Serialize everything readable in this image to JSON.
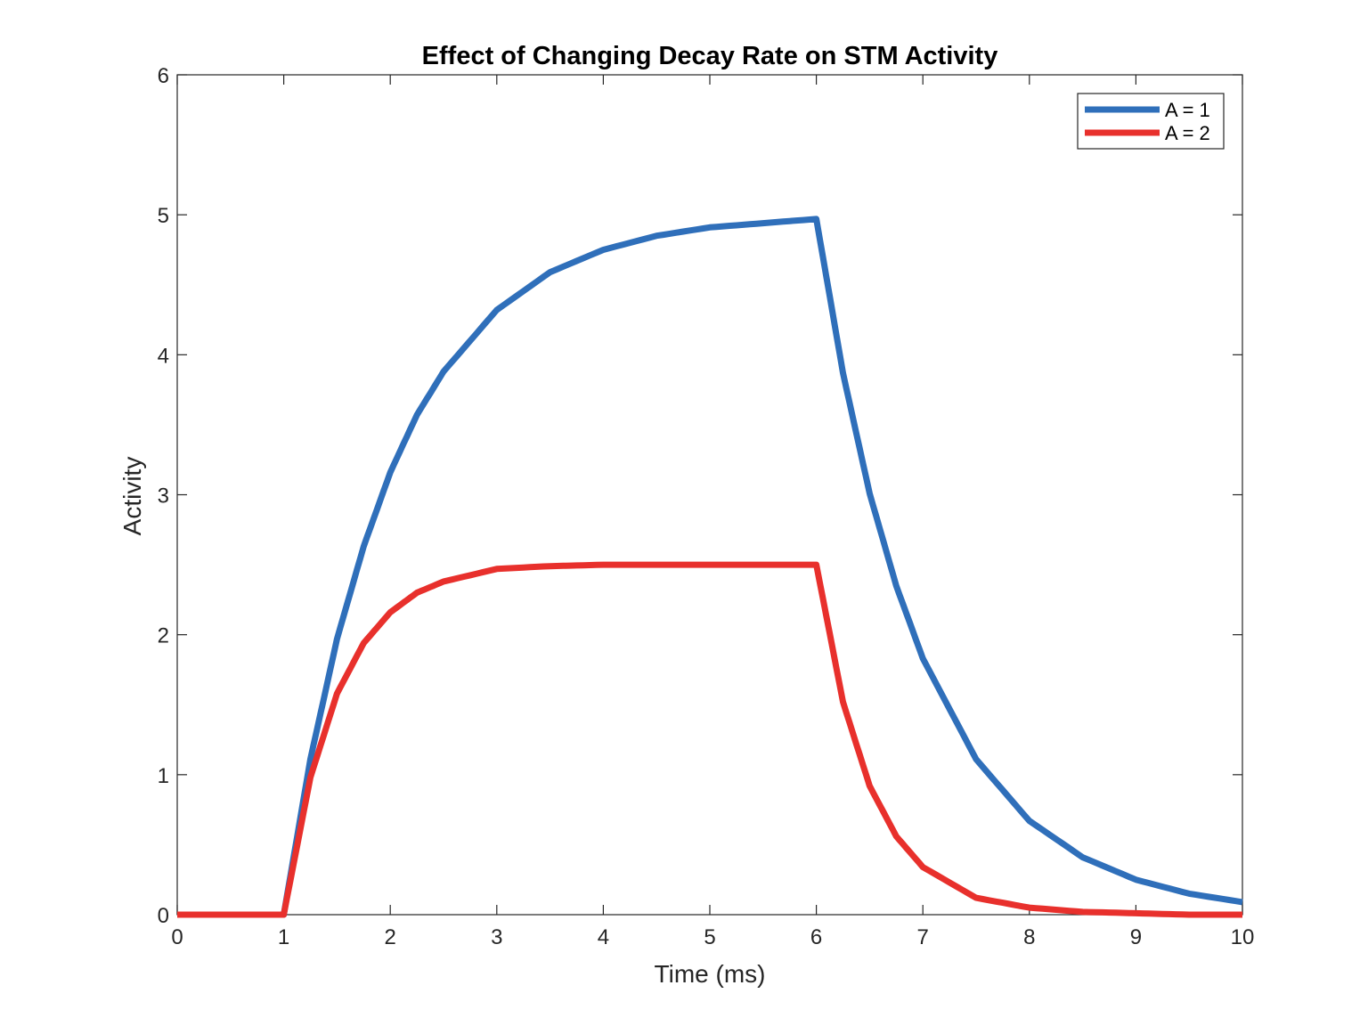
{
  "chart_data": {
    "type": "line",
    "title": "Effect of Changing Decay Rate on STM Activity",
    "xlabel": "Time (ms)",
    "ylabel": "Activity",
    "xlim": [
      0,
      10
    ],
    "ylim": [
      0,
      6
    ],
    "xticks": [
      0,
      1,
      2,
      3,
      4,
      5,
      6,
      7,
      8,
      9,
      10
    ],
    "yticks": [
      0,
      1,
      2,
      3,
      4,
      5,
      6
    ],
    "grid": false,
    "legend_position": "top-right",
    "x": [
      0,
      0.5,
      1,
      1.25,
      1.5,
      1.75,
      2,
      2.25,
      2.5,
      3,
      3.5,
      4,
      4.5,
      5,
      5.5,
      6,
      6.25,
      6.5,
      6.75,
      7,
      7.5,
      8,
      8.5,
      9,
      9.5,
      10
    ],
    "series": [
      {
        "name": "A = 1",
        "color": "#2f6fba",
        "values": [
          0,
          0,
          0,
          1.11,
          1.97,
          2.63,
          3.16,
          3.57,
          3.88,
          4.32,
          4.59,
          4.75,
          4.85,
          4.91,
          4.94,
          4.97,
          3.87,
          3.01,
          2.35,
          1.83,
          1.11,
          0.67,
          0.41,
          0.25,
          0.15,
          0.09
        ]
      },
      {
        "name": "A = 2",
        "color": "#e8302c",
        "values": [
          0,
          0,
          0,
          0.98,
          1.58,
          1.94,
          2.16,
          2.3,
          2.38,
          2.47,
          2.49,
          2.5,
          2.5,
          2.5,
          2.5,
          2.5,
          1.52,
          0.92,
          0.56,
          0.34,
          0.12,
          0.05,
          0.02,
          0.01,
          0.0,
          0.0
        ]
      }
    ]
  }
}
